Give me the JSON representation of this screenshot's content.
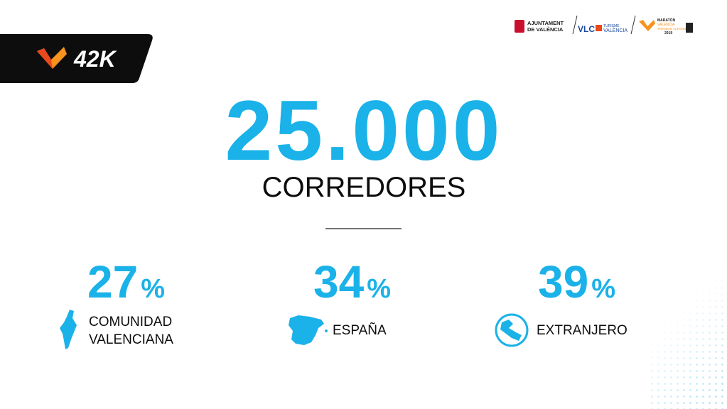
{
  "badge": {
    "label": "42K"
  },
  "logos": {
    "ajuntament": [
      "AJUNTAMENT",
      "DE VALÈNCIA"
    ],
    "vlc": "VLC",
    "turisme": [
      "TURISME",
      "VALÈNCIA"
    ],
    "maraton": [
      "MARATÓN",
      "VALENCIA",
      "TRINIDAD ALFONSO",
      "2019"
    ]
  },
  "headline": {
    "number": "25.000",
    "label": "CORREDORES"
  },
  "stats": [
    {
      "value": 27,
      "unit": "%",
      "label": [
        "COMUNIDAD",
        "VALENCIANA"
      ]
    },
    {
      "value": 34,
      "unit": "%",
      "label": [
        "ESPAÑA"
      ]
    },
    {
      "value": 39,
      "unit": "%",
      "label": [
        "EXTRANJERO"
      ]
    }
  ]
}
